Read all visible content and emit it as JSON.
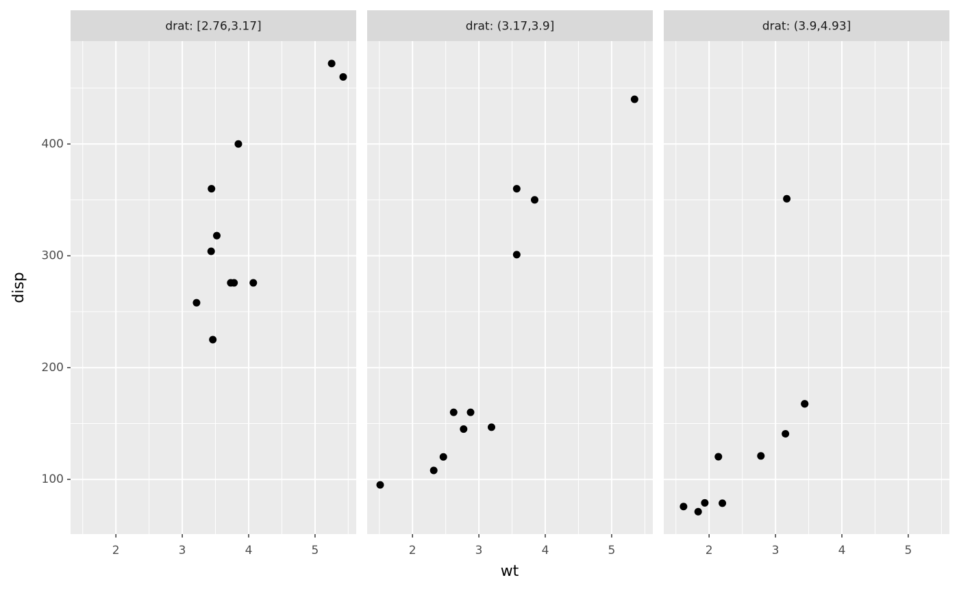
{
  "x_label": "wt",
  "y_label": "disp",
  "chart_data": [
    {
      "type": "scatter",
      "title": "drat: [2.76,3.17]",
      "x": [
        5.25,
        5.424,
        3.845,
        3.44,
        3.52,
        3.435,
        3.73,
        3.78,
        4.07,
        3.215,
        3.46
      ],
      "values": [
        472,
        460,
        400,
        360,
        318,
        304,
        275.8,
        275.8,
        275.8,
        258,
        225
      ],
      "color": "#000000",
      "xlim": [
        1.317,
        5.62
      ],
      "ylim": [
        51.055,
        492.045
      ],
      "xticks": [
        2,
        3,
        4,
        5
      ],
      "yticks": [
        100,
        200,
        300,
        400
      ],
      "xminor": [
        1.5,
        2.5,
        3.5,
        4.5,
        5.5
      ],
      "yminor": [
        150,
        250,
        350,
        450
      ],
      "grid": true
    },
    {
      "type": "scatter",
      "title": "drat: (3.17,3.9]",
      "x": [
        5.345,
        3.57,
        3.84,
        3.57,
        2.62,
        2.875,
        2.77,
        3.19,
        2.465,
        2.32,
        1.513
      ],
      "values": [
        440,
        360,
        350,
        301,
        160,
        160,
        145,
        146.7,
        120.1,
        108,
        95.1
      ],
      "color": "#000000",
      "xlim": [
        1.317,
        5.62
      ],
      "ylim": [
        51.055,
        492.045
      ],
      "xticks": [
        2,
        3,
        4,
        5
      ],
      "yticks": [
        100,
        200,
        300,
        400
      ],
      "xminor": [
        1.5,
        2.5,
        3.5,
        4.5,
        5.5
      ],
      "yminor": [
        150,
        250,
        350,
        450
      ],
      "grid": true
    },
    {
      "type": "scatter",
      "title": "drat: (3.9,4.93]",
      "x": [
        3.17,
        3.44,
        3.44,
        3.15,
        2.14,
        2.78,
        2.2,
        1.935,
        1.615,
        1.835
      ],
      "values": [
        351,
        167.6,
        167.6,
        140.8,
        120.3,
        121,
        78.7,
        79,
        75.7,
        71.1
      ],
      "color": "#000000",
      "xlim": [
        1.317,
        5.62
      ],
      "ylim": [
        51.055,
        492.045
      ],
      "xticks": [
        2,
        3,
        4,
        5
      ],
      "yticks": [
        100,
        200,
        300,
        400
      ],
      "xminor": [
        1.5,
        2.5,
        3.5,
        4.5,
        5.5
      ],
      "yminor": [
        150,
        250,
        350,
        450
      ],
      "grid": true
    }
  ]
}
